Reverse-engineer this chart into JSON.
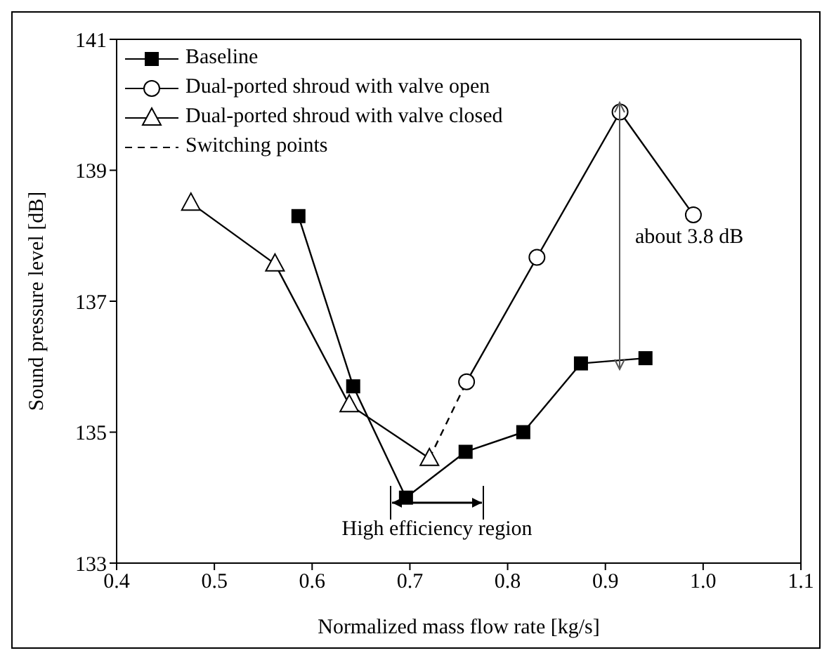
{
  "chart_data": {
    "type": "line",
    "xlabel": "Normalized mass flow rate [kg/s]",
    "ylabel": "Sound pressure level [dB]",
    "xlim": [
      0.4,
      1.1
    ],
    "xticks": [
      0.4,
      0.5,
      0.6,
      0.7,
      0.8,
      0.9,
      {
        "value": 1,
        "label": "1.0"
      },
      1.1
    ],
    "ylim": [
      133,
      141
    ],
    "yticks": [
      133,
      135,
      137,
      139,
      141
    ],
    "legend": "top left",
    "series": [
      {
        "name": "Baseline",
        "color": "#000000",
        "marker": "square",
        "x": [
          0.586,
          0.642,
          0.696,
          0.757,
          0.816,
          0.875,
          0.941
        ],
        "values": [
          138.3,
          135.7,
          134.0,
          134.7,
          135.0,
          136.05,
          136.13
        ]
      },
      {
        "name": "Dual-ported shroud with valve open",
        "color": "#000000",
        "marker": "circle",
        "x": [
          0.758,
          0.83,
          0.915,
          0.99
        ],
        "values": [
          135.77,
          137.67,
          139.89,
          138.32
        ]
      },
      {
        "name": "Dual-ported shroud with valve closed",
        "color": "#000000",
        "marker": "triangle",
        "x": [
          0.476,
          0.562,
          0.638,
          0.72
        ],
        "values": [
          138.5,
          137.57,
          135.42,
          134.6
        ]
      },
      {
        "name": "Switching points",
        "color": "#000000",
        "marker": "none",
        "line_style": "dashed",
        "x": [
          0.72,
          0.758
        ],
        "values": [
          134.6,
          135.77
        ]
      }
    ],
    "annotations": [
      "High efficiency region",
      "about 3.8 dB"
    ]
  }
}
